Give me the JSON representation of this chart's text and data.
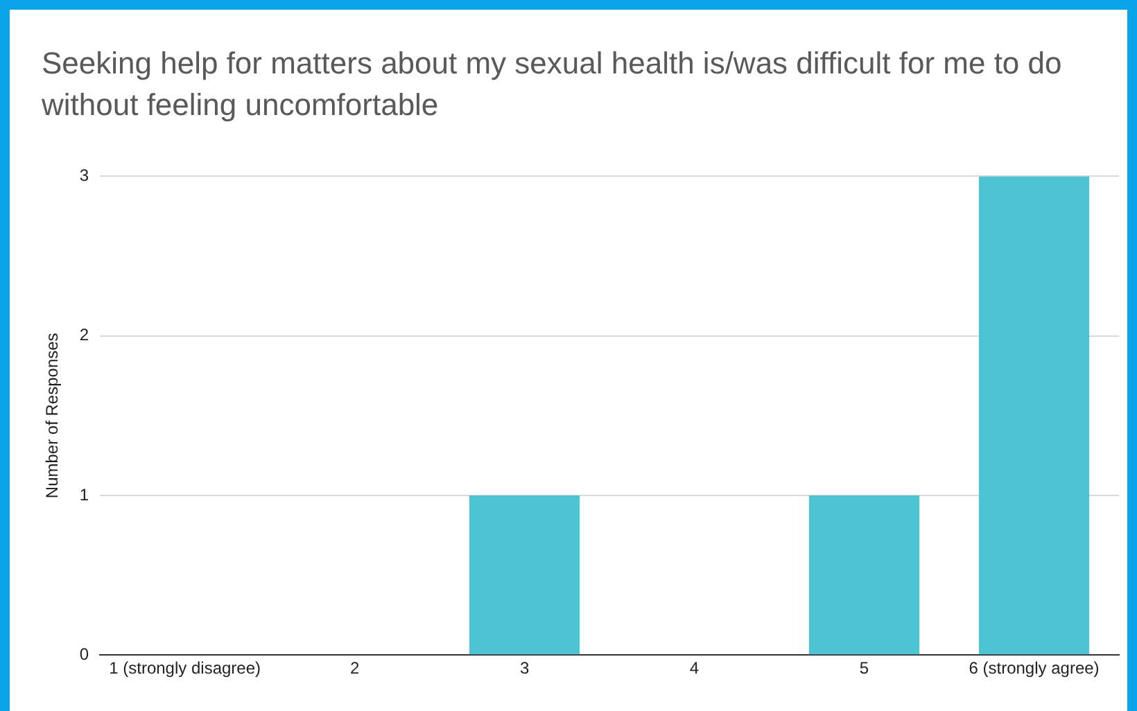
{
  "chart_data": {
    "type": "bar",
    "title": "Seeking help for matters about my sexual health is/was difficult for me to do without feeling uncomfortable",
    "ylabel": "Number of Responses",
    "categories": [
      "1 (strongly disagree)",
      "2",
      "3",
      "4",
      "5",
      "6 (strongly agree)"
    ],
    "values": [
      0,
      0,
      1,
      0,
      1,
      3
    ],
    "color": "#4dc4d4",
    "ylim": [
      0,
      3
    ],
    "yticks": [
      0,
      1,
      2,
      3
    ],
    "grid": "y",
    "legend": false
  }
}
